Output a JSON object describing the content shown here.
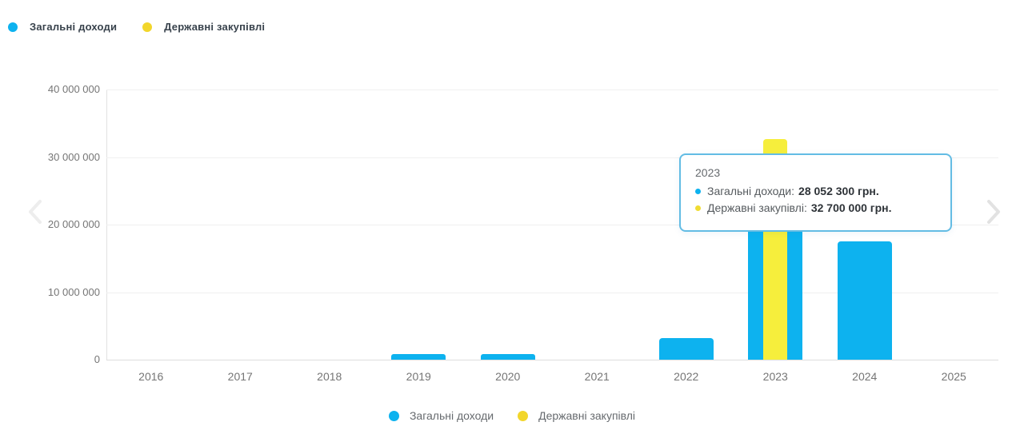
{
  "chart_data": {
    "type": "bar",
    "title": "",
    "xlabel": "",
    "ylabel": "",
    "categories": [
      "2016",
      "2017",
      "2018",
      "2019",
      "2020",
      "2021",
      "2022",
      "2023",
      "2024",
      "2025"
    ],
    "series": [
      {
        "name": "Загальні доходи",
        "color": "#0db2ef",
        "values": [
          0,
          0,
          0,
          800000,
          800000,
          0,
          3200000,
          28052300,
          17500000,
          0
        ]
      },
      {
        "name": "Державні закупівлі",
        "color": "#f6ee3c",
        "values": [
          0,
          0,
          0,
          0,
          0,
          0,
          0,
          32700000,
          0,
          0
        ]
      }
    ],
    "ylim": [
      0,
      40000000
    ],
    "yticks": [
      "0",
      "10 000 000",
      "20 000 000",
      "30 000 000",
      "40 000 000"
    ],
    "grid": true,
    "legend_position": "top and bottom"
  },
  "legend_top": {
    "items": [
      {
        "label": "Загальні доходи",
        "color": "#0db2ef"
      },
      {
        "label": "Державні закупівлі",
        "color": "#f2d62b"
      }
    ]
  },
  "legend_bottom": {
    "items": [
      {
        "label": "Загальні доходи",
        "color": "#0db2ef"
      },
      {
        "label": "Державні закупівлі",
        "color": "#f2d62b"
      }
    ]
  },
  "tooltip": {
    "title": "2023",
    "rows": [
      {
        "label": "Загальні доходи:",
        "value": "28 052 300 грн.",
        "color": "#0db2ef"
      },
      {
        "label": "Державні закупівлі:",
        "value": "32 700 000 грн.",
        "color": "#f0dc32"
      }
    ]
  },
  "nav": {
    "prev_icon": "chevron-left",
    "next_icon": "chevron-right"
  },
  "colors": {
    "bar_blue": "#0db2ef",
    "bar_yellow": "#f6ee3c",
    "tooltip_border": "#63bce4",
    "gridline": "#f0f0f0",
    "axis_text": "#757575"
  }
}
